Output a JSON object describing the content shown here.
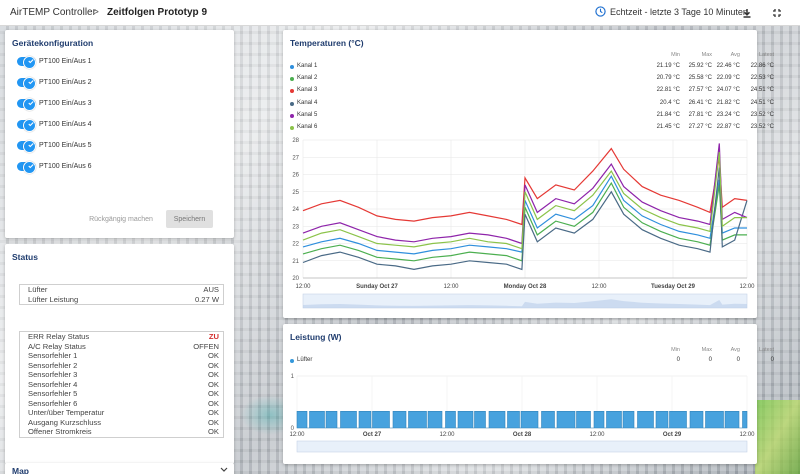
{
  "breadcrumb": {
    "app": "AirTEMP Controller",
    "separator": ">",
    "page": "Zeitfolgen Prototyp 9"
  },
  "toolbar": {
    "realtime_label": "Echtzeit - letzte 3 Tage 10 Minuten",
    "clock_icon": "clock-icon",
    "download_icon": "download-icon",
    "fullscreen_icon": "fullscreen-icon"
  },
  "config": {
    "title": "Gerätekonfiguration",
    "toggles": [
      "PT100 Ein/Aus 1",
      "PT100 Ein/Aus 2",
      "PT100 Ein/Aus 3",
      "PT100 Ein/Aus 4",
      "PT100 Ein/Aus 5",
      "PT100 Ein/Aus 6"
    ],
    "undo_label": "Rückgängig machen",
    "save_label": "Speichern"
  },
  "status": {
    "title": "Status",
    "fan": [
      {
        "label": "Lüfter",
        "value": "AUS"
      },
      {
        "label": "Lüfter Leistung",
        "value": "0.27 W"
      }
    ],
    "relays": [
      {
        "label": "ERR Relay Status",
        "value": "ZU",
        "alert": true
      },
      {
        "label": "A/C Relay Status",
        "value": "OFFEN"
      },
      {
        "label": "Sensorfehler 1",
        "value": "OK"
      },
      {
        "label": "Sensorfehler 2",
        "value": "OK"
      },
      {
        "label": "Sensorfehler 3",
        "value": "OK"
      },
      {
        "label": "Sensorfehler 4",
        "value": "OK"
      },
      {
        "label": "Sensorfehler 5",
        "value": "OK"
      },
      {
        "label": "Sensorfehler 6",
        "value": "OK"
      },
      {
        "label": "Unter/über Temperatur",
        "value": "OK"
      },
      {
        "label": "Ausgang Kurzschluss",
        "value": "OK"
      },
      {
        "label": "Offener Stromkreis",
        "value": "OK"
      }
    ]
  },
  "map": {
    "title": "Map"
  },
  "chart_data": [
    {
      "type": "line",
      "title": "Temperaturen (°C)",
      "stat_headers": [
        "Min",
        "Max",
        "Avg",
        "Latest"
      ],
      "ylim": [
        20,
        28
      ],
      "yticks": [
        "20",
        "21",
        "22",
        "23",
        "24",
        "25",
        "26",
        "27",
        "28"
      ],
      "xticks": [
        "12:00",
        "Sunday Oct 27",
        "12:00",
        "Monday Oct 28",
        "12:00",
        "Tuesday Oct 29",
        "12:00"
      ],
      "xrange_hours": [
        0,
        72
      ],
      "series": [
        {
          "name": "Kanal 1",
          "color": "#2f8fdd",
          "min": "21.19 °C",
          "max": "25.92 °C",
          "avg": "22.46 °C",
          "latest": "22.86 °C",
          "x": [
            0,
            3,
            6,
            9,
            12,
            15,
            18,
            21,
            24,
            27,
            30,
            33,
            35.5,
            36,
            38,
            41,
            44,
            47,
            50,
            52,
            55,
            58,
            61,
            64,
            66,
            67.5,
            68,
            70,
            72
          ],
          "y": [
            21.8,
            22.1,
            22.3,
            22.0,
            21.6,
            21.5,
            21.4,
            21.6,
            21.7,
            21.9,
            21.8,
            21.7,
            21.5,
            24.5,
            22.9,
            23.7,
            23.4,
            24.2,
            25.9,
            24.5,
            23.6,
            23.1,
            22.7,
            22.5,
            22.3,
            25.7,
            22.6,
            22.9,
            22.9
          ]
        },
        {
          "name": "Kanal 2",
          "color": "#4caf50",
          "min": "20.79 °C",
          "max": "25.58 °C",
          "avg": "22.09 °C",
          "latest": "22.53 °C",
          "x": [
            0,
            3,
            6,
            9,
            12,
            15,
            18,
            21,
            24,
            27,
            30,
            33,
            35.5,
            36,
            38,
            41,
            44,
            47,
            50,
            52,
            55,
            58,
            61,
            64,
            66,
            67.5,
            68,
            70,
            72
          ],
          "y": [
            21.4,
            21.7,
            21.9,
            21.6,
            21.2,
            21.1,
            21.0,
            21.2,
            21.3,
            21.5,
            21.4,
            21.3,
            21.0,
            24.1,
            22.5,
            23.3,
            23.0,
            23.8,
            25.5,
            24.1,
            23.2,
            22.7,
            22.3,
            22.1,
            21.9,
            25.4,
            22.2,
            22.5,
            22.5
          ]
        },
        {
          "name": "Kanal 3",
          "color": "#e53935",
          "min": "22.81 °C",
          "max": "27.57 °C",
          "avg": "24.07 °C",
          "latest": "24.51 °C",
          "x": [
            0,
            3,
            6,
            9,
            12,
            15,
            18,
            21,
            24,
            27,
            30,
            33,
            35.5,
            36,
            38,
            41,
            44,
            47,
            50,
            52,
            55,
            58,
            61,
            64,
            66,
            67.5,
            68,
            70,
            72
          ],
          "y": [
            23.9,
            24.3,
            24.5,
            24.1,
            23.6,
            23.4,
            23.3,
            23.5,
            23.6,
            23.8,
            23.6,
            23.4,
            23.1,
            25.8,
            24.6,
            25.4,
            25.1,
            26.2,
            27.5,
            26.3,
            25.3,
            24.8,
            24.5,
            24.1,
            23.8,
            27.0,
            24.1,
            24.6,
            24.5
          ]
        },
        {
          "name": "Kanal 4",
          "color": "#4a6a86",
          "min": "20.4 °C",
          "max": "26.41 °C",
          "avg": "21.82 °C",
          "latest": "24.51 °C",
          "x": [
            0,
            3,
            6,
            9,
            12,
            15,
            18,
            21,
            24,
            27,
            30,
            33,
            35.5,
            36,
            38,
            41,
            44,
            47,
            50,
            52,
            55,
            58,
            61,
            64,
            66,
            67.5,
            68,
            70,
            72
          ],
          "y": [
            20.9,
            21.3,
            21.5,
            21.2,
            20.8,
            20.7,
            20.5,
            20.7,
            20.8,
            21.0,
            20.9,
            20.8,
            20.5,
            23.7,
            22.1,
            22.9,
            22.6,
            23.4,
            25.0,
            23.7,
            22.8,
            22.3,
            21.9,
            21.7,
            21.5,
            26.4,
            21.8,
            22.2,
            24.5
          ]
        },
        {
          "name": "Kanal 5",
          "color": "#8e24aa",
          "min": "21.84 °C",
          "max": "27.81 °C",
          "avg": "23.24 °C",
          "latest": "23.52 °C",
          "x": [
            0,
            3,
            6,
            9,
            12,
            15,
            18,
            21,
            24,
            27,
            30,
            33,
            35.5,
            36,
            38,
            41,
            44,
            47,
            50,
            52,
            55,
            58,
            61,
            64,
            66,
            67.5,
            68,
            70,
            72
          ],
          "y": [
            22.6,
            23.0,
            23.2,
            22.8,
            22.4,
            22.2,
            22.1,
            22.3,
            22.4,
            22.6,
            22.5,
            22.3,
            22.0,
            25.4,
            23.8,
            24.6,
            24.3,
            25.2,
            26.6,
            25.3,
            24.4,
            23.9,
            23.5,
            23.3,
            23.1,
            27.8,
            23.4,
            23.8,
            23.5
          ]
        },
        {
          "name": "Kanal 6",
          "color": "#8bc34a",
          "min": "21.45 °C",
          "max": "27.27 °C",
          "avg": "22.87 °C",
          "latest": "23.52 °C",
          "x": [
            0,
            3,
            6,
            9,
            12,
            15,
            18,
            21,
            24,
            27,
            30,
            33,
            35.5,
            36,
            38,
            41,
            44,
            47,
            50,
            52,
            55,
            58,
            61,
            64,
            66,
            67.5,
            68,
            70,
            72
          ],
          "y": [
            22.2,
            22.6,
            22.8,
            22.4,
            22.0,
            21.9,
            21.8,
            22.0,
            22.1,
            22.3,
            22.1,
            22.0,
            21.7,
            25.0,
            23.4,
            24.2,
            23.9,
            24.8,
            26.2,
            24.9,
            24.0,
            23.5,
            23.1,
            22.9,
            22.7,
            27.3,
            23.0,
            23.5,
            23.5
          ]
        }
      ]
    },
    {
      "type": "area",
      "title": "Leistung (W)",
      "stat_headers": [
        "Min",
        "Max",
        "Avg",
        "Latest"
      ],
      "ylim": [
        0,
        1
      ],
      "yticks": [
        "0",
        "1"
      ],
      "xticks": [
        "12:00",
        "Oct 27",
        "12:00",
        "Oct 28",
        "12:00",
        "Oct 29",
        "12:00"
      ],
      "series": [
        {
          "name": "Lüfter",
          "color": "#3498db",
          "min": "0",
          "max": "0",
          "avg": "0",
          "latest": "0",
          "values_summary": "on/off fan signal, mostly on (≈0.4 W)"
        }
      ]
    }
  ]
}
